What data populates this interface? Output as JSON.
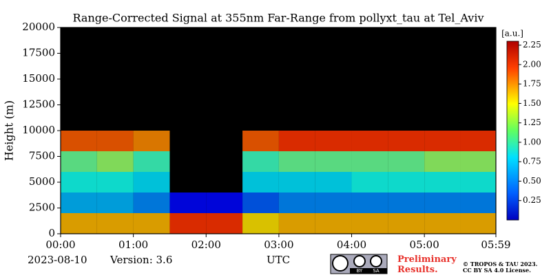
{
  "chart_data": {
    "type": "heatmap",
    "title": "Range-Corrected Signal at 355nm Far-Range from pollyxt_tau at Tel_Aviv",
    "y_label": "Height (m)",
    "x_label": "UTC",
    "date": "2023-08-10",
    "version": "Version: 3.6",
    "notice": "Preliminary Results.",
    "copyright": [
      "© TROPOS & TAU 2023.",
      "CC BY SA 4.0 License."
    ],
    "license_badge": [
      "BY",
      "SA"
    ],
    "x": [
      0.25,
      0.75,
      1.25,
      1.75,
      2.25,
      2.75,
      3.25,
      3.75,
      4.25,
      4.75,
      5.25,
      5.75
    ],
    "y": [
      1000,
      3000,
      5000,
      7000,
      9000
    ],
    "z": [
      [
        1.6,
        1.6,
        1.6,
        1.9,
        1.9,
        1.5,
        1.6,
        1.6,
        1.6,
        1.6,
        1.6,
        1.6
      ],
      [
        0.7,
        0.7,
        0.6,
        0.3,
        0.3,
        0.5,
        0.6,
        0.6,
        0.6,
        0.6,
        0.6,
        0.6
      ],
      [
        0.9,
        0.9,
        0.8,
        null,
        null,
        0.8,
        0.8,
        0.8,
        0.9,
        0.9,
        0.9,
        0.9
      ],
      [
        1.1,
        1.2,
        1.0,
        null,
        null,
        1.0,
        1.1,
        1.1,
        1.1,
        1.1,
        1.2,
        1.2
      ],
      [
        1.8,
        1.8,
        1.7,
        null,
        null,
        1.8,
        1.9,
        1.9,
        1.9,
        1.9,
        1.9,
        1.9
      ]
    ],
    "xlim": [
      0,
      5.983
    ],
    "xticks": [
      {
        "value": 0,
        "label": "00:00"
      },
      {
        "value": 1,
        "label": "01:00"
      },
      {
        "value": 2,
        "label": "02:00"
      },
      {
        "value": 3,
        "label": "03:00"
      },
      {
        "value": 4,
        "label": "04:00"
      },
      {
        "value": 5,
        "label": "05:00"
      },
      {
        "value": 5.983,
        "label": "05:59"
      }
    ],
    "ylim": [
      0,
      20000
    ],
    "yticks": [
      0,
      2500,
      5000,
      7500,
      10000,
      12500,
      15000,
      17500,
      20000
    ],
    "colorbar_label": "[a.u.]",
    "clim": [
      0,
      2.3
    ],
    "colorbar_ticks": [
      0.25,
      0.5,
      0.75,
      1.0,
      1.25,
      1.5,
      1.75,
      2.0,
      2.25
    ],
    "colorbar_tick_labels": [
      "0.25",
      "0.50",
      "0.75",
      "1.00",
      "1.25",
      "1.50",
      "1.75",
      "2.00",
      "2.25"
    ],
    "background": "#000000"
  }
}
